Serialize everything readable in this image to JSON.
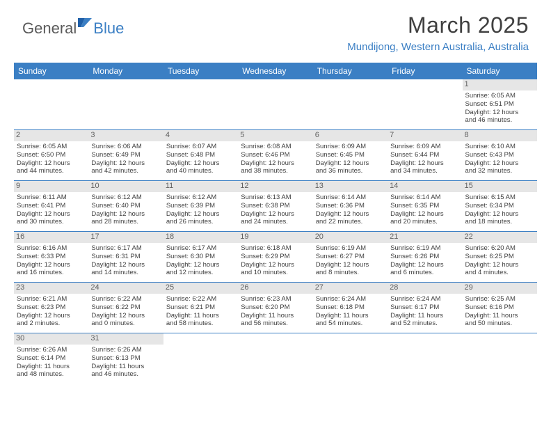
{
  "logo": {
    "text1": "General",
    "text2": "Blue"
  },
  "title": "March 2025",
  "location": "Mundijong, Western Australia, Australia",
  "colors": {
    "accent": "#3b7fc4",
    "text": "#404040",
    "grey_band": "#e6e6e6"
  },
  "day_headers": [
    "Sunday",
    "Monday",
    "Tuesday",
    "Wednesday",
    "Thursday",
    "Friday",
    "Saturday"
  ],
  "weeks": [
    [
      null,
      null,
      null,
      null,
      null,
      null,
      {
        "n": "1",
        "sr": "Sunrise: 6:05 AM",
        "ss": "Sunset: 6:51 PM",
        "d1": "Daylight: 12 hours",
        "d2": "and 46 minutes."
      }
    ],
    [
      {
        "n": "2",
        "sr": "Sunrise: 6:05 AM",
        "ss": "Sunset: 6:50 PM",
        "d1": "Daylight: 12 hours",
        "d2": "and 44 minutes."
      },
      {
        "n": "3",
        "sr": "Sunrise: 6:06 AM",
        "ss": "Sunset: 6:49 PM",
        "d1": "Daylight: 12 hours",
        "d2": "and 42 minutes."
      },
      {
        "n": "4",
        "sr": "Sunrise: 6:07 AM",
        "ss": "Sunset: 6:48 PM",
        "d1": "Daylight: 12 hours",
        "d2": "and 40 minutes."
      },
      {
        "n": "5",
        "sr": "Sunrise: 6:08 AM",
        "ss": "Sunset: 6:46 PM",
        "d1": "Daylight: 12 hours",
        "d2": "and 38 minutes."
      },
      {
        "n": "6",
        "sr": "Sunrise: 6:09 AM",
        "ss": "Sunset: 6:45 PM",
        "d1": "Daylight: 12 hours",
        "d2": "and 36 minutes."
      },
      {
        "n": "7",
        "sr": "Sunrise: 6:09 AM",
        "ss": "Sunset: 6:44 PM",
        "d1": "Daylight: 12 hours",
        "d2": "and 34 minutes."
      },
      {
        "n": "8",
        "sr": "Sunrise: 6:10 AM",
        "ss": "Sunset: 6:43 PM",
        "d1": "Daylight: 12 hours",
        "d2": "and 32 minutes."
      }
    ],
    [
      {
        "n": "9",
        "sr": "Sunrise: 6:11 AM",
        "ss": "Sunset: 6:41 PM",
        "d1": "Daylight: 12 hours",
        "d2": "and 30 minutes."
      },
      {
        "n": "10",
        "sr": "Sunrise: 6:12 AM",
        "ss": "Sunset: 6:40 PM",
        "d1": "Daylight: 12 hours",
        "d2": "and 28 minutes."
      },
      {
        "n": "11",
        "sr": "Sunrise: 6:12 AM",
        "ss": "Sunset: 6:39 PM",
        "d1": "Daylight: 12 hours",
        "d2": "and 26 minutes."
      },
      {
        "n": "12",
        "sr": "Sunrise: 6:13 AM",
        "ss": "Sunset: 6:38 PM",
        "d1": "Daylight: 12 hours",
        "d2": "and 24 minutes."
      },
      {
        "n": "13",
        "sr": "Sunrise: 6:14 AM",
        "ss": "Sunset: 6:36 PM",
        "d1": "Daylight: 12 hours",
        "d2": "and 22 minutes."
      },
      {
        "n": "14",
        "sr": "Sunrise: 6:14 AM",
        "ss": "Sunset: 6:35 PM",
        "d1": "Daylight: 12 hours",
        "d2": "and 20 minutes."
      },
      {
        "n": "15",
        "sr": "Sunrise: 6:15 AM",
        "ss": "Sunset: 6:34 PM",
        "d1": "Daylight: 12 hours",
        "d2": "and 18 minutes."
      }
    ],
    [
      {
        "n": "16",
        "sr": "Sunrise: 6:16 AM",
        "ss": "Sunset: 6:33 PM",
        "d1": "Daylight: 12 hours",
        "d2": "and 16 minutes."
      },
      {
        "n": "17",
        "sr": "Sunrise: 6:17 AM",
        "ss": "Sunset: 6:31 PM",
        "d1": "Daylight: 12 hours",
        "d2": "and 14 minutes."
      },
      {
        "n": "18",
        "sr": "Sunrise: 6:17 AM",
        "ss": "Sunset: 6:30 PM",
        "d1": "Daylight: 12 hours",
        "d2": "and 12 minutes."
      },
      {
        "n": "19",
        "sr": "Sunrise: 6:18 AM",
        "ss": "Sunset: 6:29 PM",
        "d1": "Daylight: 12 hours",
        "d2": "and 10 minutes."
      },
      {
        "n": "20",
        "sr": "Sunrise: 6:19 AM",
        "ss": "Sunset: 6:27 PM",
        "d1": "Daylight: 12 hours",
        "d2": "and 8 minutes."
      },
      {
        "n": "21",
        "sr": "Sunrise: 6:19 AM",
        "ss": "Sunset: 6:26 PM",
        "d1": "Daylight: 12 hours",
        "d2": "and 6 minutes."
      },
      {
        "n": "22",
        "sr": "Sunrise: 6:20 AM",
        "ss": "Sunset: 6:25 PM",
        "d1": "Daylight: 12 hours",
        "d2": "and 4 minutes."
      }
    ],
    [
      {
        "n": "23",
        "sr": "Sunrise: 6:21 AM",
        "ss": "Sunset: 6:23 PM",
        "d1": "Daylight: 12 hours",
        "d2": "and 2 minutes."
      },
      {
        "n": "24",
        "sr": "Sunrise: 6:22 AM",
        "ss": "Sunset: 6:22 PM",
        "d1": "Daylight: 12 hours",
        "d2": "and 0 minutes."
      },
      {
        "n": "25",
        "sr": "Sunrise: 6:22 AM",
        "ss": "Sunset: 6:21 PM",
        "d1": "Daylight: 11 hours",
        "d2": "and 58 minutes."
      },
      {
        "n": "26",
        "sr": "Sunrise: 6:23 AM",
        "ss": "Sunset: 6:20 PM",
        "d1": "Daylight: 11 hours",
        "d2": "and 56 minutes."
      },
      {
        "n": "27",
        "sr": "Sunrise: 6:24 AM",
        "ss": "Sunset: 6:18 PM",
        "d1": "Daylight: 11 hours",
        "d2": "and 54 minutes."
      },
      {
        "n": "28",
        "sr": "Sunrise: 6:24 AM",
        "ss": "Sunset: 6:17 PM",
        "d1": "Daylight: 11 hours",
        "d2": "and 52 minutes."
      },
      {
        "n": "29",
        "sr": "Sunrise: 6:25 AM",
        "ss": "Sunset: 6:16 PM",
        "d1": "Daylight: 11 hours",
        "d2": "and 50 minutes."
      }
    ],
    [
      {
        "n": "30",
        "sr": "Sunrise: 6:26 AM",
        "ss": "Sunset: 6:14 PM",
        "d1": "Daylight: 11 hours",
        "d2": "and 48 minutes."
      },
      {
        "n": "31",
        "sr": "Sunrise: 6:26 AM",
        "ss": "Sunset: 6:13 PM",
        "d1": "Daylight: 11 hours",
        "d2": "and 46 minutes."
      },
      null,
      null,
      null,
      null,
      null
    ]
  ]
}
